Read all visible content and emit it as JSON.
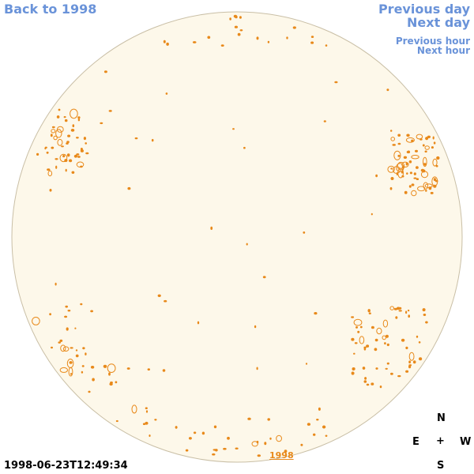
{
  "nav": {
    "back_label": "Back to 1998",
    "prev_day": "Previous day",
    "next_day": "Next day",
    "prev_hour": "Previous hour",
    "next_hour": "Next hour"
  },
  "compass": {
    "n": "N",
    "e": "E",
    "w": "W",
    "s": "S",
    "center": "+"
  },
  "timestamp": "1998-06-23T12:49:34",
  "year_label": "1998",
  "colors": {
    "link": "#6a93d9",
    "disk_fill": "#fdf8ea",
    "disk_edge": "#c9bfa6",
    "contour": "#e8891a"
  }
}
